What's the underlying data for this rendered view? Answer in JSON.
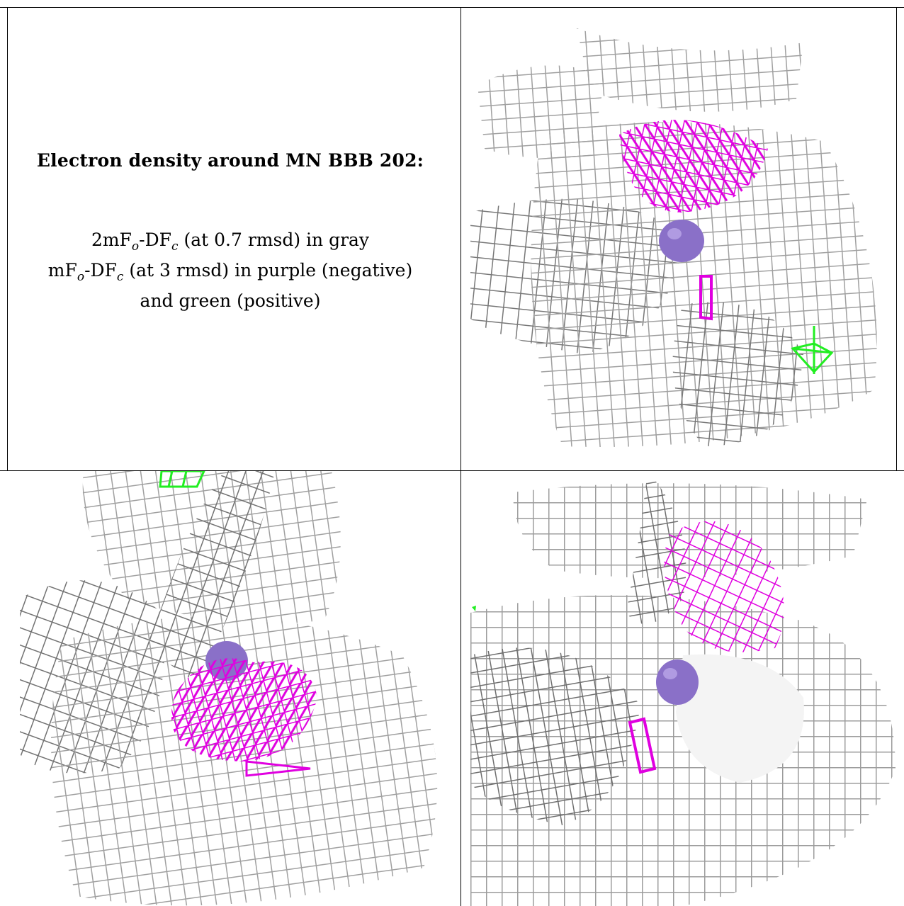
{
  "legend": {
    "title": "Electron density around MN BBB 202:",
    "line1": {
      "pre": "2mF",
      "sub1": "o",
      "mid": "-DF",
      "sub2": "c",
      "post": " (at 0.7 rmsd) in gray"
    },
    "line2": {
      "pre": "mF",
      "sub1": "o",
      "mid": "-DF",
      "sub2": "c",
      "post": " (at 3 rmsd) in purple (negative)"
    },
    "line3": "and green (positive)"
  },
  "colors": {
    "mesh_gray": "#a8a8a8",
    "mesh_dark": "#6e6e6e",
    "negative_density": "#e000e0",
    "positive_density": "#22ee22",
    "mn_atom": "#8a70c8"
  },
  "panels": [
    {
      "id": "top-right",
      "icon": "density-mesh-view-icon"
    },
    {
      "id": "bottom-left",
      "icon": "density-mesh-view-icon"
    },
    {
      "id": "bottom-right",
      "icon": "density-mesh-view-icon"
    }
  ]
}
